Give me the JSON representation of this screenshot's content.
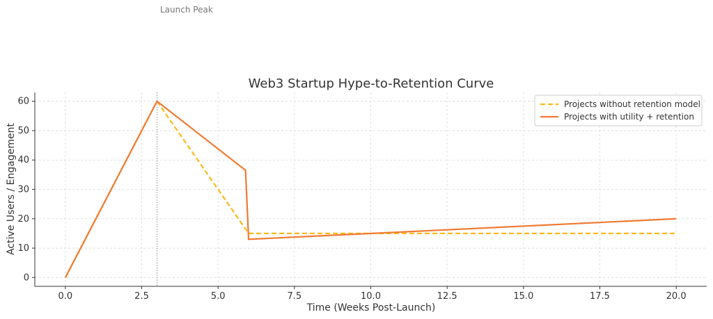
{
  "chart_data": {
    "type": "line",
    "title": "Web3 Startup Hype-to-Retention Curve",
    "xlabel": "Time (Weeks Post-Launch)",
    "ylabel": "Active Users / Engagement",
    "xlim": [
      -1,
      21
    ],
    "ylim": [
      -3,
      63
    ],
    "xticks": [
      0.0,
      2.5,
      5.0,
      7.5,
      10.0,
      12.5,
      15.0,
      17.5,
      20.0
    ],
    "xtick_labels": [
      "0.0",
      "2.5",
      "5.0",
      "7.5",
      "10.0",
      "12.5",
      "15.0",
      "17.5",
      "20.0"
    ],
    "yticks": [
      0,
      10,
      20,
      30,
      40,
      50,
      60
    ],
    "ytick_labels": [
      "0",
      "10",
      "20",
      "30",
      "40",
      "50",
      "60"
    ],
    "grid": true,
    "legend_position": "top-right",
    "series": [
      {
        "name": "Projects without retention model",
        "style": "dashed",
        "color": "#fbb917",
        "points": [
          [
            0,
            0
          ],
          [
            3,
            60
          ],
          [
            6,
            15
          ],
          [
            20,
            15
          ]
        ]
      },
      {
        "name": "Projects with utility + retention",
        "style": "solid",
        "color": "#f07a32",
        "points": [
          [
            0,
            0
          ],
          [
            3,
            60
          ],
          [
            5.9,
            36.5
          ],
          [
            6,
            13
          ],
          [
            20,
            20
          ]
        ]
      }
    ],
    "annotations": [
      {
        "text": "Launch Peak",
        "x": 3,
        "y": 93
      }
    ],
    "vline": {
      "x": 3,
      "style": "dotted",
      "color": "#888888"
    }
  }
}
